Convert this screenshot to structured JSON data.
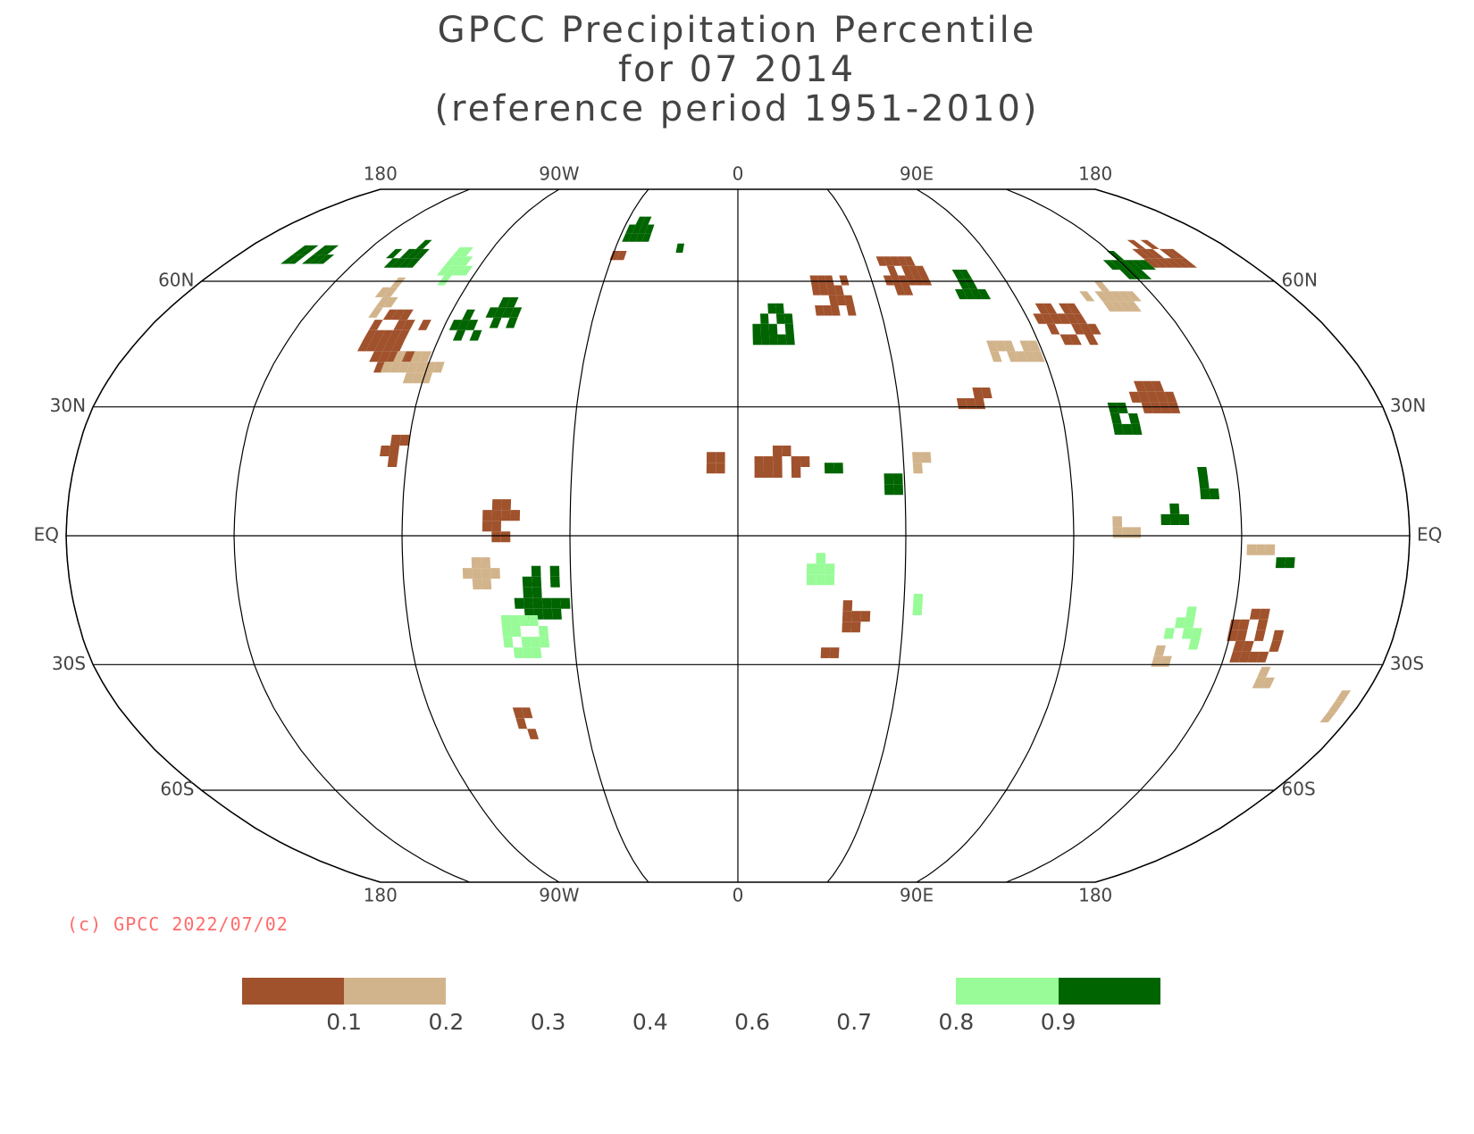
{
  "title": {
    "line1": "GPCC Precipitation Percentile",
    "line2": "for 07 2014",
    "line3": "(reference period 1951-2010)"
  },
  "map": {
    "projection": "Robinson",
    "lon_labels_top": [
      "180",
      "90W",
      "0",
      "90E",
      "180"
    ],
    "lon_labels_bottom": [
      "180",
      "90W",
      "0",
      "90E",
      "180"
    ],
    "lat_labels_left": [
      "60N",
      "30N",
      "EQ",
      "30S",
      "60S"
    ],
    "lat_labels_right": [
      "60N",
      "30N",
      "EQ",
      "30S",
      "60S"
    ],
    "lon_label_values": [
      -180,
      -90,
      0,
      90,
      180
    ],
    "lat_label_values": [
      60,
      30,
      0,
      -30,
      -60
    ],
    "meridians": [
      -180,
      -135,
      -90,
      -45,
      0,
      45,
      90,
      135,
      180
    ],
    "parallels": [
      60,
      30,
      0,
      -30,
      -60
    ],
    "central_meridian": 0
  },
  "copyright": "(c) GPCC 2022/07/02",
  "legend": {
    "swatches": [
      {
        "from": 0.0,
        "to": 0.1,
        "color": "#a0522d"
      },
      {
        "from": 0.1,
        "to": 0.2,
        "color": "#d2b48c"
      },
      {
        "from": 0.2,
        "to": 0.3,
        "color": "#ffffff"
      },
      {
        "from": 0.3,
        "to": 0.4,
        "color": "#ffffff"
      },
      {
        "from": 0.4,
        "to": 0.6,
        "color": "#ffffff"
      },
      {
        "from": 0.6,
        "to": 0.7,
        "color": "#ffffff"
      },
      {
        "from": 0.7,
        "to": 0.8,
        "color": "#ffffff"
      },
      {
        "from": 0.8,
        "to": 0.9,
        "color": "#98fb98"
      },
      {
        "from": 0.9,
        "to": 1.0,
        "color": "#006400"
      }
    ],
    "ticks": [
      "0.1",
      "0.2",
      "0.3",
      "0.4",
      "0.6",
      "0.7",
      "0.8",
      "0.9"
    ]
  },
  "colors": {
    "very_dry": "#a0522d",
    "dry": "#d2b48c",
    "wet": "#98fb98",
    "very_wet": "#006400",
    "grid": "#000000",
    "copyright": "#ff6b6b"
  },
  "precip_regions": [
    {
      "lon": -105,
      "lat": 45,
      "rx": 10,
      "ry": 7,
      "cat": "very_dry"
    },
    {
      "lon": -95,
      "lat": 38,
      "rx": 8,
      "ry": 5,
      "cat": "dry"
    },
    {
      "lon": -85,
      "lat": 48,
      "rx": 8,
      "ry": 5,
      "cat": "very_wet"
    },
    {
      "lon": -75,
      "lat": 50,
      "rx": 6,
      "ry": 4,
      "cat": "very_wet"
    },
    {
      "lon": -120,
      "lat": 65,
      "rx": 8,
      "ry": 4,
      "cat": "very_wet"
    },
    {
      "lon": -155,
      "lat": 65,
      "rx": 8,
      "ry": 3,
      "cat": "very_wet"
    },
    {
      "lon": -100,
      "lat": 63,
      "rx": 10,
      "ry": 4,
      "cat": "wet"
    },
    {
      "lon": -115,
      "lat": 55,
      "rx": 5,
      "ry": 4,
      "cat": "dry"
    },
    {
      "lon": -95,
      "lat": 20,
      "rx": 5,
      "ry": 4,
      "cat": "very_dry"
    },
    {
      "lon": -65,
      "lat": 2,
      "rx": 6,
      "ry": 6,
      "cat": "very_dry"
    },
    {
      "lon": -55,
      "lat": -15,
      "rx": 8,
      "ry": 7,
      "cat": "very_wet"
    },
    {
      "lon": -60,
      "lat": -25,
      "rx": 7,
      "ry": 6,
      "cat": "wet"
    },
    {
      "lon": -70,
      "lat": -10,
      "rx": 4,
      "ry": 5,
      "cat": "dry"
    },
    {
      "lon": -65,
      "lat": -45,
      "rx": 3,
      "ry": 5,
      "cat": "very_dry"
    },
    {
      "lon": -40,
      "lat": 72,
      "rx": 6,
      "ry": 4,
      "cat": "very_wet"
    },
    {
      "lon": -22,
      "lat": 67,
      "rx": 3,
      "ry": 2,
      "cat": "very_wet"
    },
    {
      "lon": -45,
      "lat": 65,
      "rx": 3,
      "ry": 2,
      "cat": "very_dry"
    },
    {
      "lon": 10,
      "lat": 48,
      "rx": 8,
      "ry": 6,
      "cat": "very_wet"
    },
    {
      "lon": 30,
      "lat": 55,
      "rx": 8,
      "ry": 6,
      "cat": "very_dry"
    },
    {
      "lon": 55,
      "lat": 60,
      "rx": 8,
      "ry": 6,
      "cat": "very_dry"
    },
    {
      "lon": 75,
      "lat": 58,
      "rx": 6,
      "ry": 5,
      "cat": "very_wet"
    },
    {
      "lon": 100,
      "lat": 48,
      "rx": 10,
      "ry": 6,
      "cat": "very_dry"
    },
    {
      "lon": 120,
      "lat": 55,
      "rx": 8,
      "ry": 5,
      "cat": "dry"
    },
    {
      "lon": 135,
      "lat": 62,
      "rx": 8,
      "ry": 4,
      "cat": "very_wet"
    },
    {
      "lon": 150,
      "lat": 65,
      "rx": 8,
      "ry": 4,
      "cat": "very_dry"
    },
    {
      "lon": 80,
      "lat": 42,
      "rx": 8,
      "ry": 4,
      "cat": "dry"
    },
    {
      "lon": 115,
      "lat": 30,
      "rx": 7,
      "ry": 4,
      "cat": "very_dry"
    },
    {
      "lon": 105,
      "lat": 25,
      "rx": 4,
      "ry": 4,
      "cat": "very_wet"
    },
    {
      "lon": 10,
      "lat": 15,
      "rx": 8,
      "ry": 4,
      "cat": "very_dry"
    },
    {
      "lon": -8,
      "lat": 15,
      "rx": 3,
      "ry": 3,
      "cat": "very_dry"
    },
    {
      "lon": 25,
      "lat": 15,
      "rx": 4,
      "ry": 3,
      "cat": "very_wet"
    },
    {
      "lon": 30,
      "lat": -20,
      "rx": 4,
      "ry": 5,
      "cat": "very_dry"
    },
    {
      "lon": 20,
      "lat": -10,
      "rx": 4,
      "ry": 4,
      "cat": "wet"
    },
    {
      "lon": 22,
      "lat": -28,
      "rx": 4,
      "ry": 3,
      "cat": "very_dry"
    },
    {
      "lon": 47,
      "lat": -18,
      "rx": 2,
      "ry": 3,
      "cat": "wet"
    },
    {
      "lon": 140,
      "lat": -25,
      "rx": 8,
      "ry": 7,
      "cat": "very_dry"
    },
    {
      "lon": 122,
      "lat": -24,
      "rx": 5,
      "ry": 5,
      "cat": "wet"
    },
    {
      "lon": 116,
      "lat": -30,
      "rx": 3,
      "ry": 3,
      "cat": "dry"
    },
    {
      "lon": 147,
      "lat": -35,
      "rx": 3,
      "ry": 3,
      "cat": "dry"
    },
    {
      "lon": 172,
      "lat": -42,
      "rx": 2,
      "ry": 4,
      "cat": "dry"
    },
    {
      "lon": 102,
      "lat": 0,
      "rx": 4,
      "ry": 3,
      "cat": "dry"
    },
    {
      "lon": 115,
      "lat": 3,
      "rx": 4,
      "ry": 3,
      "cat": "very_wet"
    },
    {
      "lon": 125,
      "lat": 10,
      "rx": 3,
      "ry": 4,
      "cat": "very_wet"
    },
    {
      "lon": 138,
      "lat": -5,
      "rx": 4,
      "ry": 2,
      "cat": "dry"
    },
    {
      "lon": 145,
      "lat": -8,
      "rx": 3,
      "ry": 2,
      "cat": "very_wet"
    },
    {
      "lon": 65,
      "lat": 30,
      "rx": 6,
      "ry": 3,
      "cat": "very_dry"
    },
    {
      "lon": 48,
      "lat": 15,
      "rx": 3,
      "ry": 3,
      "cat": "dry"
    },
    {
      "lon": 40,
      "lat": 10,
      "rx": 3,
      "ry": 3,
      "cat": "very_wet"
    }
  ]
}
